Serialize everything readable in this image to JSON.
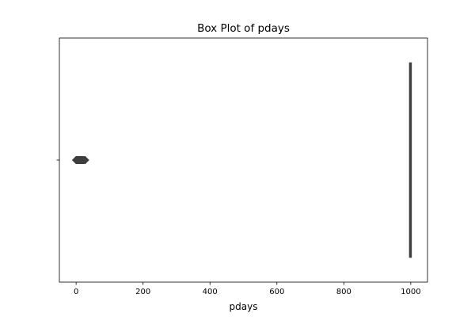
{
  "chart_data": {
    "type": "box",
    "title": "Box Plot of pdays",
    "xlabel": "pdays",
    "ylabel": "",
    "orientation": "horizontal",
    "xlim": [
      -50,
      1050
    ],
    "xticks": [
      0,
      200,
      400,
      600,
      800,
      1000
    ],
    "grid": false,
    "legend": "none",
    "colors": {
      "box_line": "#3f3f3f",
      "outlier_fill": "#3f3f3f",
      "axes": "#000000",
      "background": "#ffffff"
    },
    "series": [
      {
        "category": "",
        "whisker_low": 999,
        "q1": 999,
        "median": 999,
        "q3": 999,
        "whisker_high": 999,
        "outliers": [
          0,
          1,
          2,
          3,
          4,
          5,
          6,
          7,
          8,
          9,
          10,
          11,
          12,
          13,
          14,
          15,
          16,
          17,
          18,
          19,
          20,
          21,
          22,
          25,
          26,
          27
        ]
      }
    ]
  }
}
